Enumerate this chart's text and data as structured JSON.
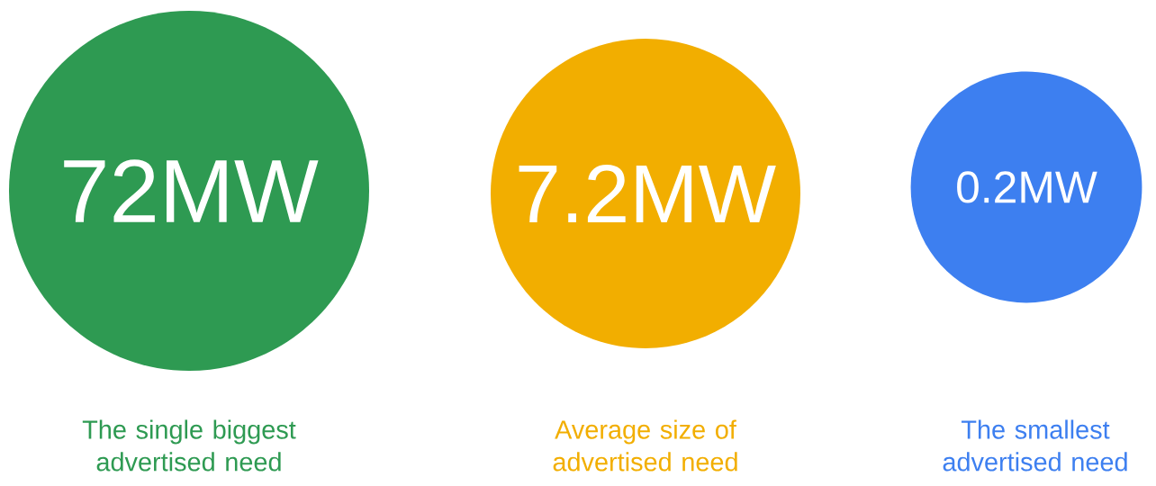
{
  "chart_data": {
    "type": "other",
    "categories": [
      "The single biggest advertised need",
      "Average size of advertised need",
      "The smallest advertised need"
    ],
    "values": [
      72,
      7.2,
      0.2
    ],
    "value_labels": [
      "72MW",
      "7.2MW",
      "0.2MW"
    ],
    "colors": [
      "#2e9a52",
      "#f2ae00",
      "#3d7ff0"
    ]
  }
}
